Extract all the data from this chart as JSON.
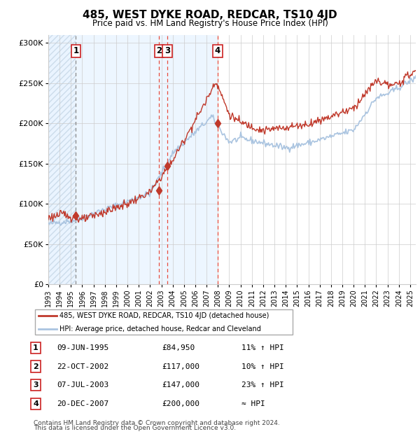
{
  "title": "485, WEST DYKE ROAD, REDCAR, TS10 4JD",
  "subtitle": "Price paid vs. HM Land Registry's House Price Index (HPI)",
  "legend_line1": "485, WEST DYKE ROAD, REDCAR, TS10 4JD (detached house)",
  "legend_line2": "HPI: Average price, detached house, Redcar and Cleveland",
  "footer1": "Contains HM Land Registry data © Crown copyright and database right 2024.",
  "footer2": "This data is licensed under the Open Government Licence v3.0.",
  "transactions": [
    {
      "num": 1,
      "date": "09-JUN-1995",
      "price": 84950,
      "pct": "11% ↑ HPI",
      "x": 1995.44
    },
    {
      "num": 2,
      "date": "22-OCT-2002",
      "price": 117000,
      "pct": "10% ↑ HPI",
      "x": 2002.81
    },
    {
      "num": 3,
      "date": "07-JUL-2003",
      "price": 147000,
      "pct": "23% ↑ HPI",
      "x": 2003.52
    },
    {
      "num": 4,
      "date": "20-DEC-2007",
      "price": 200000,
      "pct": "≈ HPI",
      "x": 2007.97
    }
  ],
  "hpi_color": "#aac4e0",
  "price_color": "#c0392b",
  "dot_color": "#c0392b",
  "shade_color": "#ddeeff",
  "ylim": [
    0,
    310000
  ],
  "xlim_start": 1993.0,
  "xlim_end": 2025.5,
  "yticks": [
    0,
    50000,
    100000,
    150000,
    200000,
    250000,
    300000
  ],
  "ytick_labels": [
    "£0",
    "£50K",
    "£100K",
    "£150K",
    "£200K",
    "£250K",
    "£300K"
  ],
  "xtick_years": [
    1993,
    1994,
    1995,
    1996,
    1997,
    1998,
    1999,
    2000,
    2001,
    2002,
    2003,
    2004,
    2005,
    2006,
    2007,
    2008,
    2009,
    2010,
    2011,
    2012,
    2013,
    2014,
    2015,
    2016,
    2017,
    2018,
    2019,
    2020,
    2021,
    2022,
    2023,
    2024,
    2025
  ]
}
